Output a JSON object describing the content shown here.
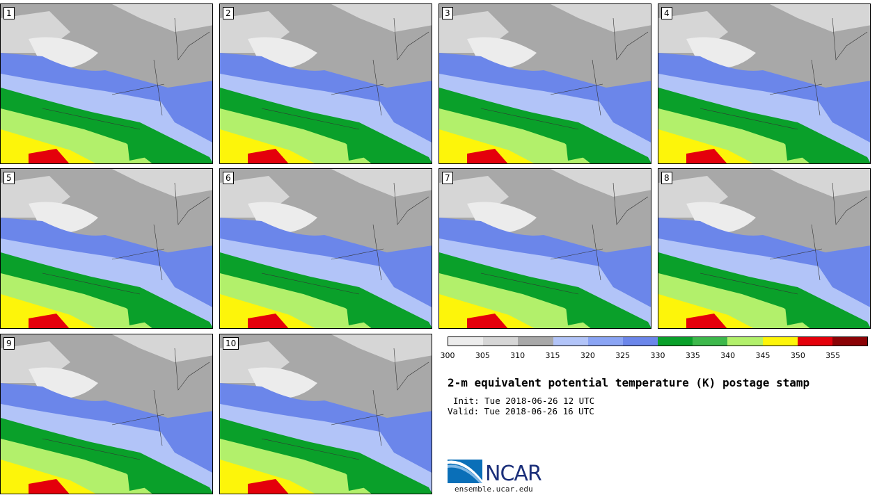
{
  "panels": [
    {
      "label": "1"
    },
    {
      "label": "2"
    },
    {
      "label": "3"
    },
    {
      "label": "4"
    },
    {
      "label": "5"
    },
    {
      "label": "6"
    },
    {
      "label": "7"
    },
    {
      "label": "8"
    },
    {
      "label": "9"
    },
    {
      "label": "10"
    }
  ],
  "colorbar": {
    "colors": [
      "#ececec",
      "#d6d6d6",
      "#a8a8a8",
      "#b2c4f8",
      "#8aa4f4",
      "#6b86ea",
      "#0aa02a",
      "#3db84b",
      "#b2f06b",
      "#fdf50a",
      "#e4000b",
      "#8b0306"
    ],
    "ticks": [
      "300",
      "305",
      "310",
      "315",
      "320",
      "325",
      "330",
      "335",
      "340",
      "345",
      "350",
      "355"
    ]
  },
  "title": "2-m equivalent potential temperature (K) postage stamp",
  "init": "Init: Tue 2018-06-26 12 UTC",
  "valid": "Valid: Tue 2018-06-26 16 UTC",
  "logo": {
    "text": "NCAR",
    "url": "ensemble.ucar.edu"
  }
}
